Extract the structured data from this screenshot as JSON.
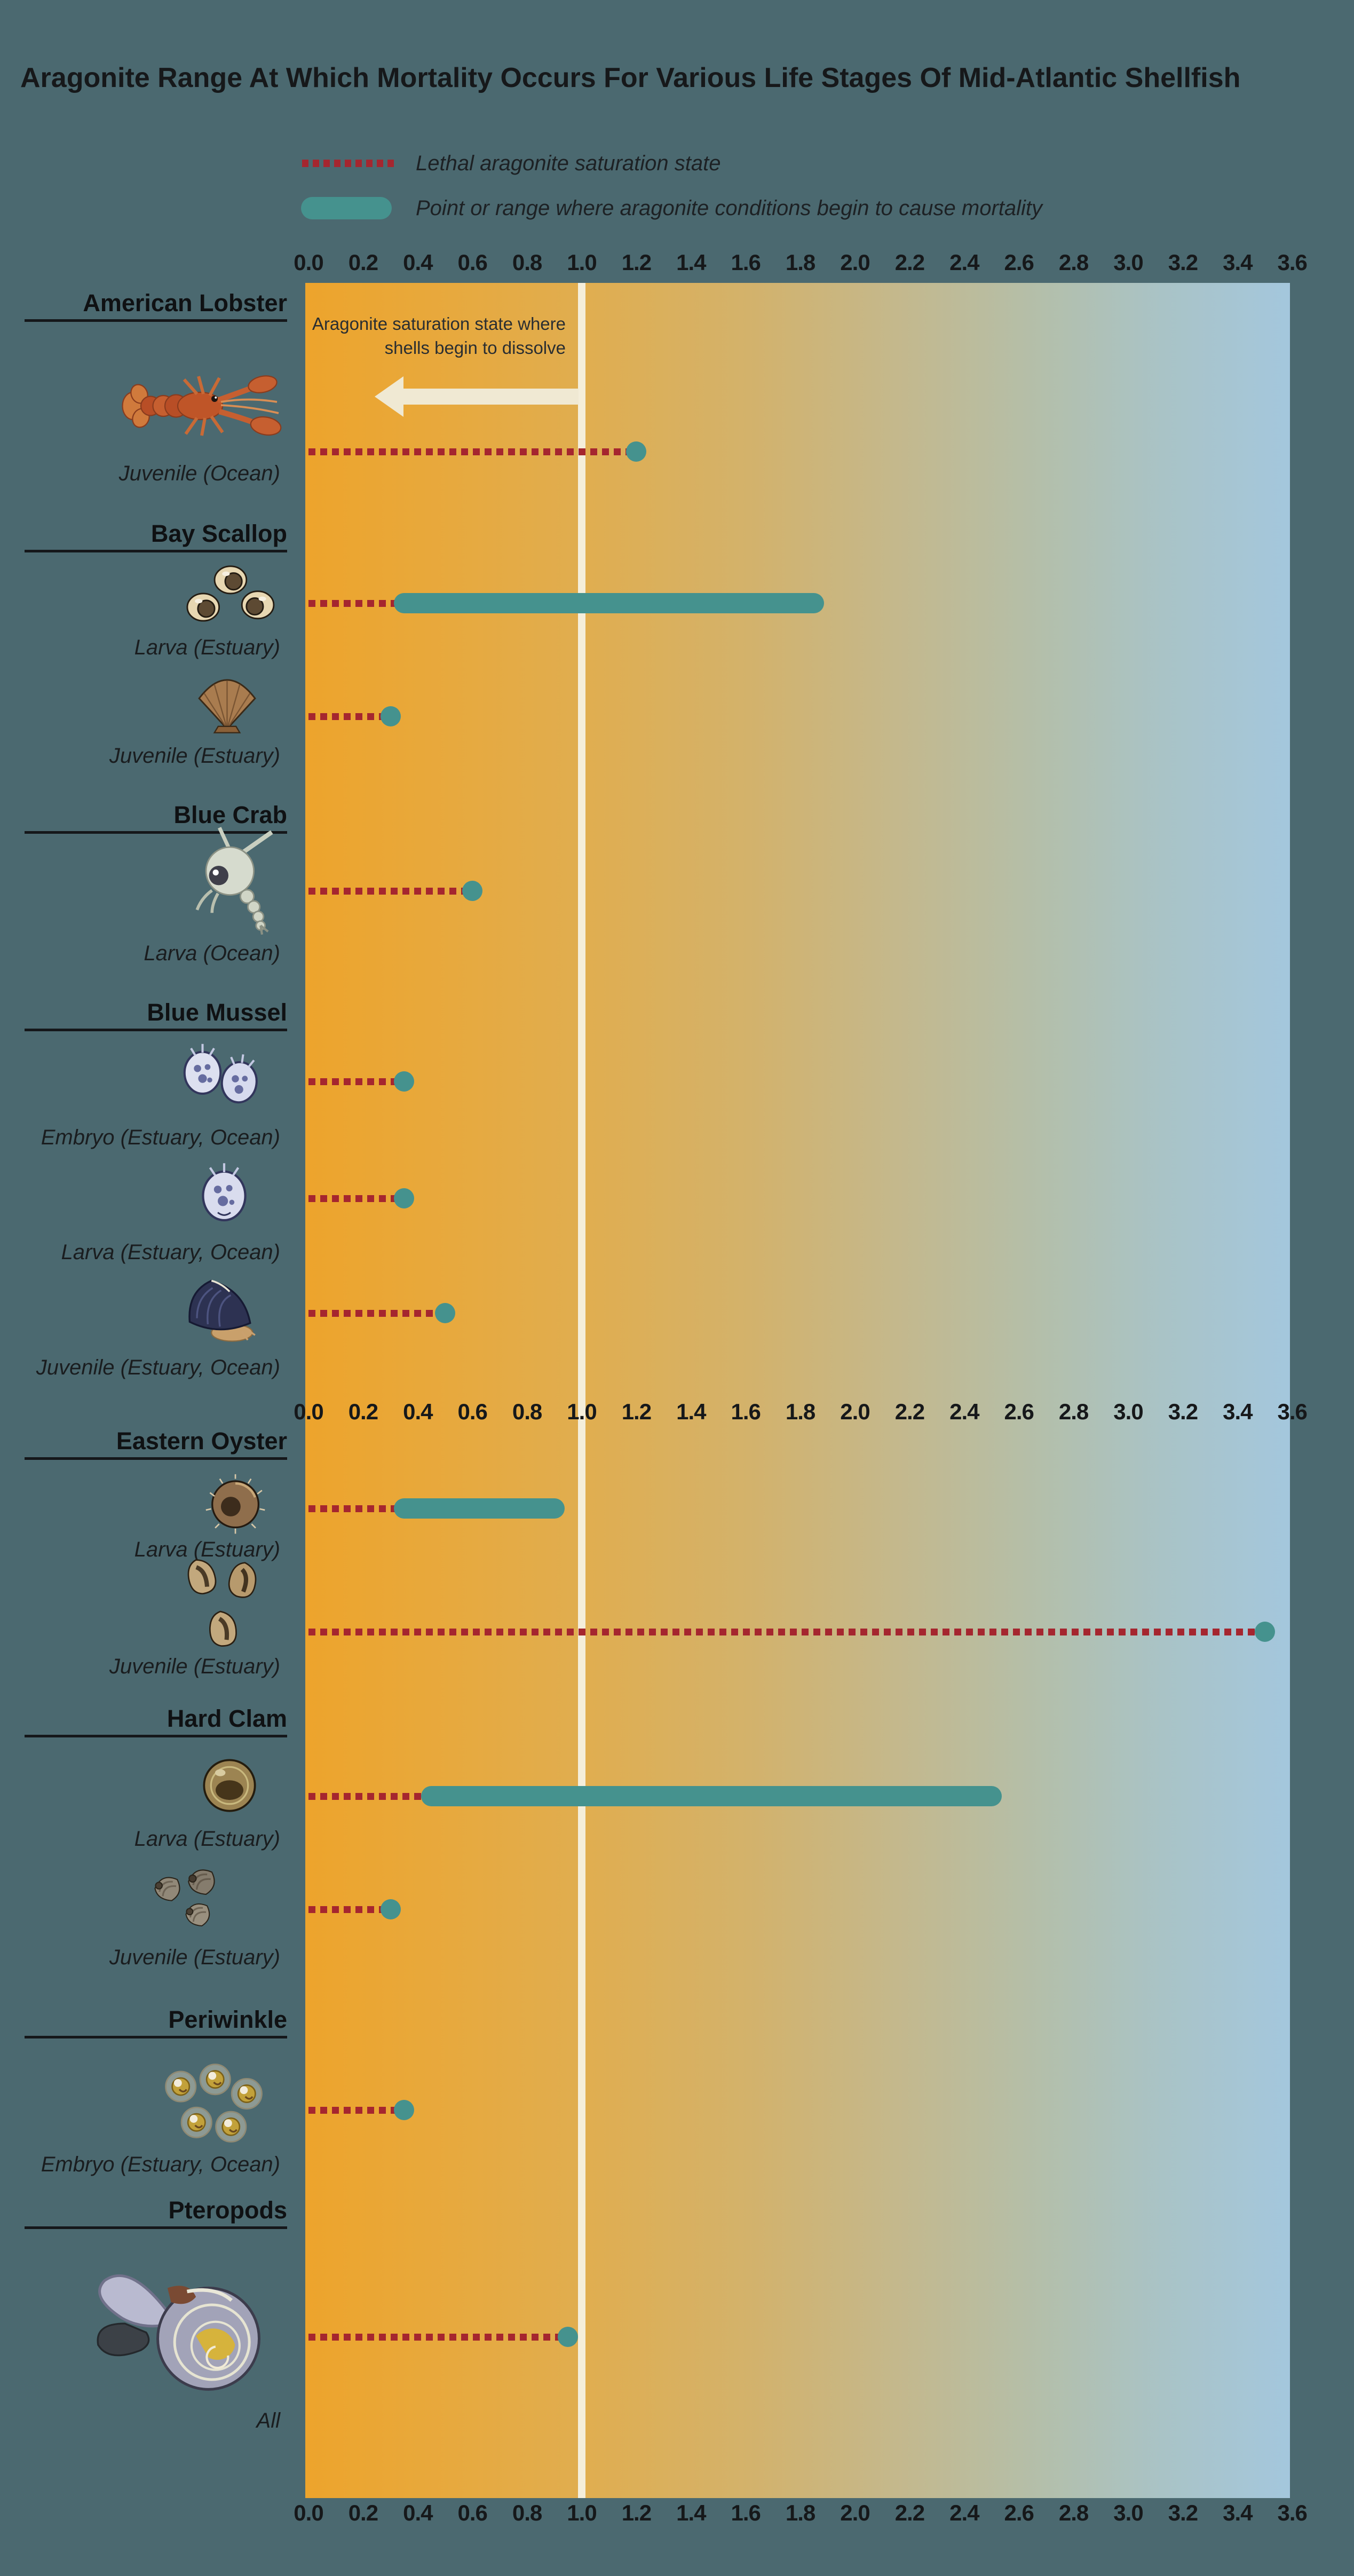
{
  "title": "Aragonite Range At Which Mortality Occurs For Various Life Stages Of Mid-Atlantic Shellfish",
  "legend": {
    "items": [
      {
        "swatch": "lethal-dash-swatch",
        "label": "Lethal aragonite saturation state"
      },
      {
        "swatch": "mortality-range-swatch",
        "label": "Point or range where aragonite conditions begin to cause mortality"
      }
    ]
  },
  "annotation": {
    "line1": "Aragonite saturation state where",
    "line2": "shells begin to dissolve"
  },
  "colors": {
    "background": "#4b6970",
    "mortality_teal": "#45928e",
    "lethal_red": "#a5262f",
    "reference_line_cream": "#f4eedb",
    "plot_gradient_left_orange": "#eda42c",
    "plot_gradient_right_blue": "#a4c7dd",
    "text_ink": "#16181a"
  },
  "chart_data": {
    "type": "dot-range",
    "title": "Aragonite Range At Which Mortality Occurs For Various Life Stages Of Mid-Atlantic Shellfish",
    "axis": {
      "min": 0.0,
      "max": 3.6,
      "step": 0.2,
      "ticks": [
        "0.0",
        "0.2",
        "0.4",
        "0.6",
        "0.8",
        "1.0",
        "1.2",
        "1.4",
        "1.6",
        "1.8",
        "2.0",
        "2.2",
        "2.4",
        "2.6",
        "2.8",
        "3.0",
        "3.2",
        "3.4",
        "3.6"
      ],
      "axis_repeats": [
        "top",
        "middle",
        "bottom"
      ],
      "reference_line_value": 1.0,
      "reference_line_meaning": "Aragonite saturation state where shells begin to dissolve (arrow points toward values below 1.0)"
    },
    "legend_position": "top-left above plot",
    "grid": false,
    "groups": [
      {
        "species": "American Lobster",
        "stages": [
          {
            "stage": "Juvenile (Ocean)",
            "illustration": "american-lobster-illustration",
            "point": 1.2,
            "range": null
          }
        ]
      },
      {
        "species": "Bay Scallop",
        "stages": [
          {
            "stage": "Larva (Estuary)",
            "illustration": "bay-scallop-larvae-illustration",
            "point": null,
            "range": [
              0.35,
              1.85
            ]
          },
          {
            "stage": "Juvenile (Estuary)",
            "illustration": "bay-scallop-shell-illustration",
            "point": 0.3,
            "range": null
          }
        ]
      },
      {
        "species": "Blue Crab",
        "stages": [
          {
            "stage": "Larva (Ocean)",
            "illustration": "blue-crab-zoea-illustration",
            "point": 0.6,
            "range": null
          }
        ]
      },
      {
        "species": "Blue Mussel",
        "stages": [
          {
            "stage": "Embryo (Estuary, Ocean)",
            "illustration": "blue-mussel-embryos-illustration",
            "point": 0.35,
            "range": null
          },
          {
            "stage": "Larva (Estuary, Ocean)",
            "illustration": "blue-mussel-larva-illustration",
            "point": 0.35,
            "range": null
          },
          {
            "stage": "Juvenile (Estuary, Ocean)",
            "illustration": "blue-mussel-shell-illustration",
            "point": 0.5,
            "range": null
          }
        ]
      },
      {
        "species": "Eastern Oyster",
        "stages": [
          {
            "stage": "Larva (Estuary)",
            "illustration": "eastern-oyster-larva-illustration",
            "point": null,
            "range": [
              0.35,
              0.9
            ]
          },
          {
            "stage": "Juvenile (Estuary)",
            "illustration": "eastern-oyster-juveniles-illustration",
            "point": 3.5,
            "range": null
          }
        ]
      },
      {
        "species": "Hard Clam",
        "stages": [
          {
            "stage": "Larva (Estuary)",
            "illustration": "hard-clam-larva-illustration",
            "point": null,
            "range": [
              0.45,
              2.5
            ]
          },
          {
            "stage": "Juvenile (Estuary)",
            "illustration": "hard-clam-juveniles-illustration",
            "point": 0.3,
            "range": null
          }
        ]
      },
      {
        "species": "Periwinkle",
        "stages": [
          {
            "stage": "Embryo (Estuary, Ocean)",
            "illustration": "periwinkle-eggs-illustration",
            "point": 0.35,
            "range": null
          }
        ]
      },
      {
        "species": "Pteropods",
        "stages": [
          {
            "stage": "All",
            "illustration": "pteropod-illustration",
            "point": 0.95,
            "range": null
          }
        ]
      }
    ]
  }
}
